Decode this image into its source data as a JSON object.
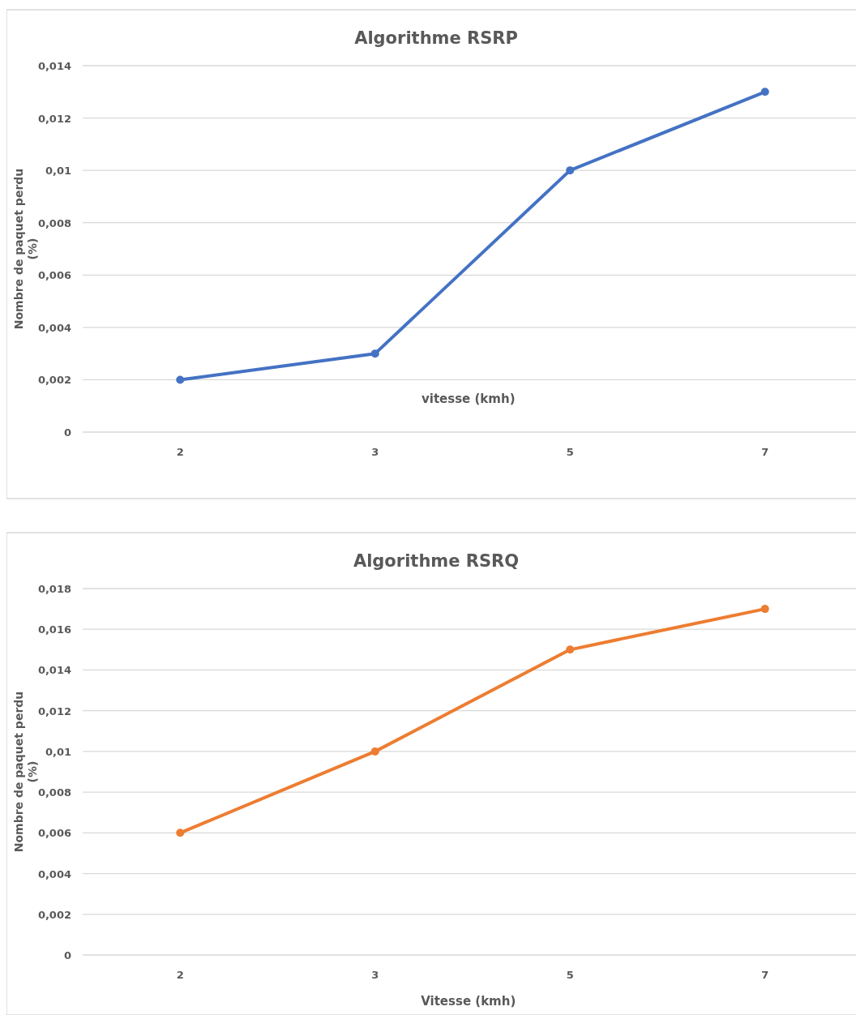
{
  "chart_data": [
    {
      "type": "line",
      "title": "Algorithme RSRP",
      "xlabel": "vitesse (kmh)",
      "ylabel": "Nombre de paquet perdu (%)",
      "categories": [
        "2",
        "3",
        "5",
        "7"
      ],
      "series": [
        {
          "color": "#4472c4",
          "values": [
            0.002,
            0.003,
            0.01,
            0.013
          ]
        }
      ],
      "ylim": [
        0,
        0.014
      ],
      "yticks": [
        0,
        {
          "value": 0.002,
          "label": "0,002"
        },
        {
          "value": 0.004,
          "label": "0,004"
        },
        {
          "value": 0.006,
          "label": "0,006"
        },
        {
          "value": 0.008,
          "label": "0,008"
        },
        {
          "value": 0.01,
          "label": "0,01"
        },
        {
          "value": 0.012,
          "label": "0,012"
        },
        {
          "value": 0.014,
          "label": "0,014"
        }
      ],
      "grid": "y",
      "marker": "circle",
      "line_style": "solid"
    },
    {
      "type": "line",
      "title": "Algorithme RSRQ",
      "xlabel": "Vitesse (kmh)",
      "ylabel": "Nombre de paquet perdu (%)",
      "categories": [
        "2",
        "3",
        "5",
        "7"
      ],
      "series": [
        {
          "color": "#ed7d31",
          "values": [
            0.006,
            0.01,
            0.015,
            0.017
          ]
        }
      ],
      "ylim": [
        0,
        0.018
      ],
      "yticks": [
        0,
        {
          "value": 0.002,
          "label": "0,002"
        },
        {
          "value": 0.004,
          "label": "0,004"
        },
        {
          "value": 0.006,
          "label": "0,006"
        },
        {
          "value": 0.008,
          "label": "0,008"
        },
        {
          "value": 0.01,
          "label": "0,01"
        },
        {
          "value": 0.012,
          "label": "0,012"
        },
        {
          "value": 0.014,
          "label": "0,014"
        },
        {
          "value": 0.016,
          "label": "0,016"
        },
        {
          "value": 0.018,
          "label": "0,018"
        }
      ],
      "grid": "y",
      "marker": "circle",
      "line_style": "solid"
    }
  ]
}
